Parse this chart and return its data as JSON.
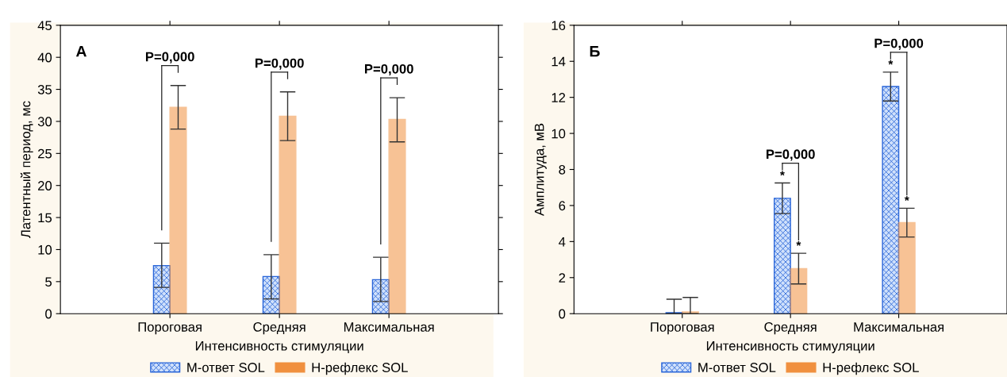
{
  "chart_data": [
    {
      "type": "bar",
      "xlabel": "Интенсивность стимуляции",
      "ylabel": "Латентный период, мс",
      "categories": [
        "Пороговая",
        "Средняя",
        "Максимальная"
      ],
      "ylim": [
        0,
        45
      ],
      "yticks": [
        0,
        5,
        10,
        15,
        20,
        25,
        30,
        35,
        40,
        45
      ],
      "grid": false,
      "legend": "bottom",
      "series": [
        {
          "name": "М-ответ SOL",
          "color": "#2a66d9",
          "values": [
            7.5,
            5.8,
            5.3
          ],
          "errors": [
            [
              4.1,
              11.0
            ],
            [
              2.3,
              9.2
            ],
            [
              1.9,
              8.8
            ]
          ]
        },
        {
          "name": "Н-рефлекс SOL",
          "color": "#f0903f",
          "values": [
            32.2,
            30.8,
            30.3
          ],
          "errors": [
            [
              28.8,
              35.6
            ],
            [
              27.0,
              34.6
            ],
            [
              26.8,
              33.7
            ]
          ]
        }
      ],
      "annotations": [
        "А",
        {
          "text": "P=0,000",
          "x": "Пороговая",
          "y": 35.6
        },
        {
          "text": "P=0,000",
          "x": "Средняя",
          "y": 34.6
        },
        {
          "text": "P=0,000",
          "x": "Максимальная",
          "y": 33.7
        }
      ]
    },
    {
      "type": "bar",
      "xlabel": "Интенсивность стимуляции",
      "ylabel": "Амплитуда, мВ",
      "categories": [
        "Пороговая",
        "Средняя",
        "Максимальная"
      ],
      "ylim": [
        0,
        16
      ],
      "yticks": [
        0,
        2,
        4,
        6,
        8,
        10,
        12,
        14,
        16
      ],
      "grid": false,
      "legend": "bottom",
      "series": [
        {
          "name": "М-ответ SOL",
          "color": "#2a66d9",
          "values": [
            0.05,
            6.4,
            12.6
          ],
          "errors": [
            [
              0,
              0.8
            ],
            [
              5.55,
              7.25
            ],
            [
              11.8,
              13.4
            ]
          ]
        },
        {
          "name": "Н-рефлекс SOL",
          "color": "#f0903f",
          "values": [
            0.1,
            2.5,
            5.05
          ],
          "errors": [
            [
              0,
              0.9
            ],
            [
              1.65,
              3.35
            ],
            [
              4.25,
              5.85
            ]
          ]
        }
      ],
      "annotations": [
        "Б",
        {
          "text": "P=0,000",
          "x": "Средняя",
          "y": 7.25
        },
        {
          "text": "P=0,000",
          "x": "Максимальная",
          "y": 13.4
        },
        {
          "text": "*",
          "x": "Средняя",
          "y": 7.25
        },
        {
          "text": "*",
          "x": "Средняя",
          "y": 3.35
        },
        {
          "text": "*",
          "x": "Максимальная",
          "y": 13.4
        },
        {
          "text": "*",
          "x": "Максимальная",
          "y": 5.85
        }
      ]
    }
  ]
}
